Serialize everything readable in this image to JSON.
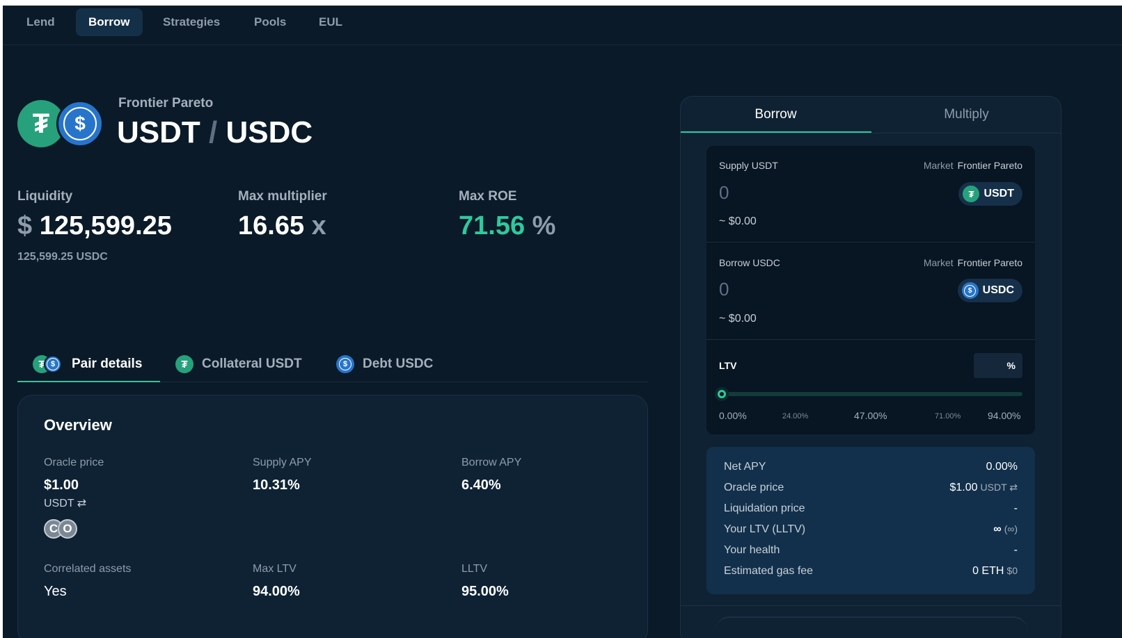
{
  "nav": {
    "items": [
      {
        "label": "Lend"
      },
      {
        "label": "Borrow"
      },
      {
        "label": "Strategies"
      },
      {
        "label": "Pools"
      },
      {
        "label": "EUL"
      }
    ],
    "active": "Borrow"
  },
  "header": {
    "market": "Frontier Pareto",
    "collateral_symbol": "USDT",
    "slash": "/",
    "debt_symbol": "USDC"
  },
  "stats": {
    "liquidity": {
      "label": "Liquidity",
      "currency": "$",
      "value": "125,599.25",
      "sub": "125,599.25 USDC"
    },
    "max_multiplier": {
      "label": "Max multiplier",
      "value": "16.65",
      "unit": "x"
    },
    "max_roe": {
      "label": "Max ROE",
      "value": "71.56",
      "unit": "%"
    }
  },
  "subtabs": [
    {
      "label": "Pair details",
      "icon": "pair-icon"
    },
    {
      "label": "Collateral USDT",
      "icon": "usdt-icon"
    },
    {
      "label": "Debt USDC",
      "icon": "usdc-icon"
    }
  ],
  "overview": {
    "title": "Overview",
    "oracle_price": {
      "label": "Oracle price",
      "value": "$1.00",
      "sub": "USDT ⇄",
      "badge": "CO"
    },
    "supply_apy": {
      "label": "Supply APY",
      "value": "10.31%"
    },
    "borrow_apy": {
      "label": "Borrow APY",
      "value": "6.40%"
    },
    "correlated_assets": {
      "label": "Correlated assets",
      "value": "Yes"
    },
    "max_ltv": {
      "label": "Max LTV",
      "value": "94.00%"
    },
    "lltv": {
      "label": "LLTV",
      "value": "95.00%"
    }
  },
  "panel": {
    "tabs": [
      {
        "label": "Borrow"
      },
      {
        "label": "Multiply"
      }
    ],
    "supply": {
      "label": "Supply USDT",
      "market_label": "Market",
      "market_value": "Frontier Pareto",
      "placeholder": "0",
      "usd": "~ $0.00",
      "token": "USDT"
    },
    "borrow": {
      "label": "Borrow USDC",
      "market_label": "Market",
      "market_value": "Frontier Pareto",
      "placeholder": "0",
      "usd": "~ $0.00",
      "token": "USDC"
    },
    "ltv": {
      "label": "LTV",
      "unit": "%",
      "current_fraction": 0,
      "ticks": [
        "0.00%",
        "24.00%",
        "47.00%",
        "71.00%",
        "94.00%"
      ]
    },
    "summary": [
      {
        "label": "Net APY",
        "value": "0.00%",
        "extra": ""
      },
      {
        "label": "Oracle price",
        "value": "$1.00",
        "extra": "USDT ⇄"
      },
      {
        "label": "Liquidation price",
        "value": "-",
        "extra": ""
      },
      {
        "label": "Your LTV (LLTV)",
        "value": "∞",
        "extra": "(∞)"
      },
      {
        "label": "Your health",
        "value": "-",
        "extra": ""
      },
      {
        "label": "Estimated gas fee",
        "value": "0 ETH",
        "extra": "$0"
      }
    ]
  },
  "colors": {
    "accent": "#2ec99e",
    "usdt": "#26a17b",
    "usdc": "#2775ca",
    "background": "#0b1a28"
  }
}
